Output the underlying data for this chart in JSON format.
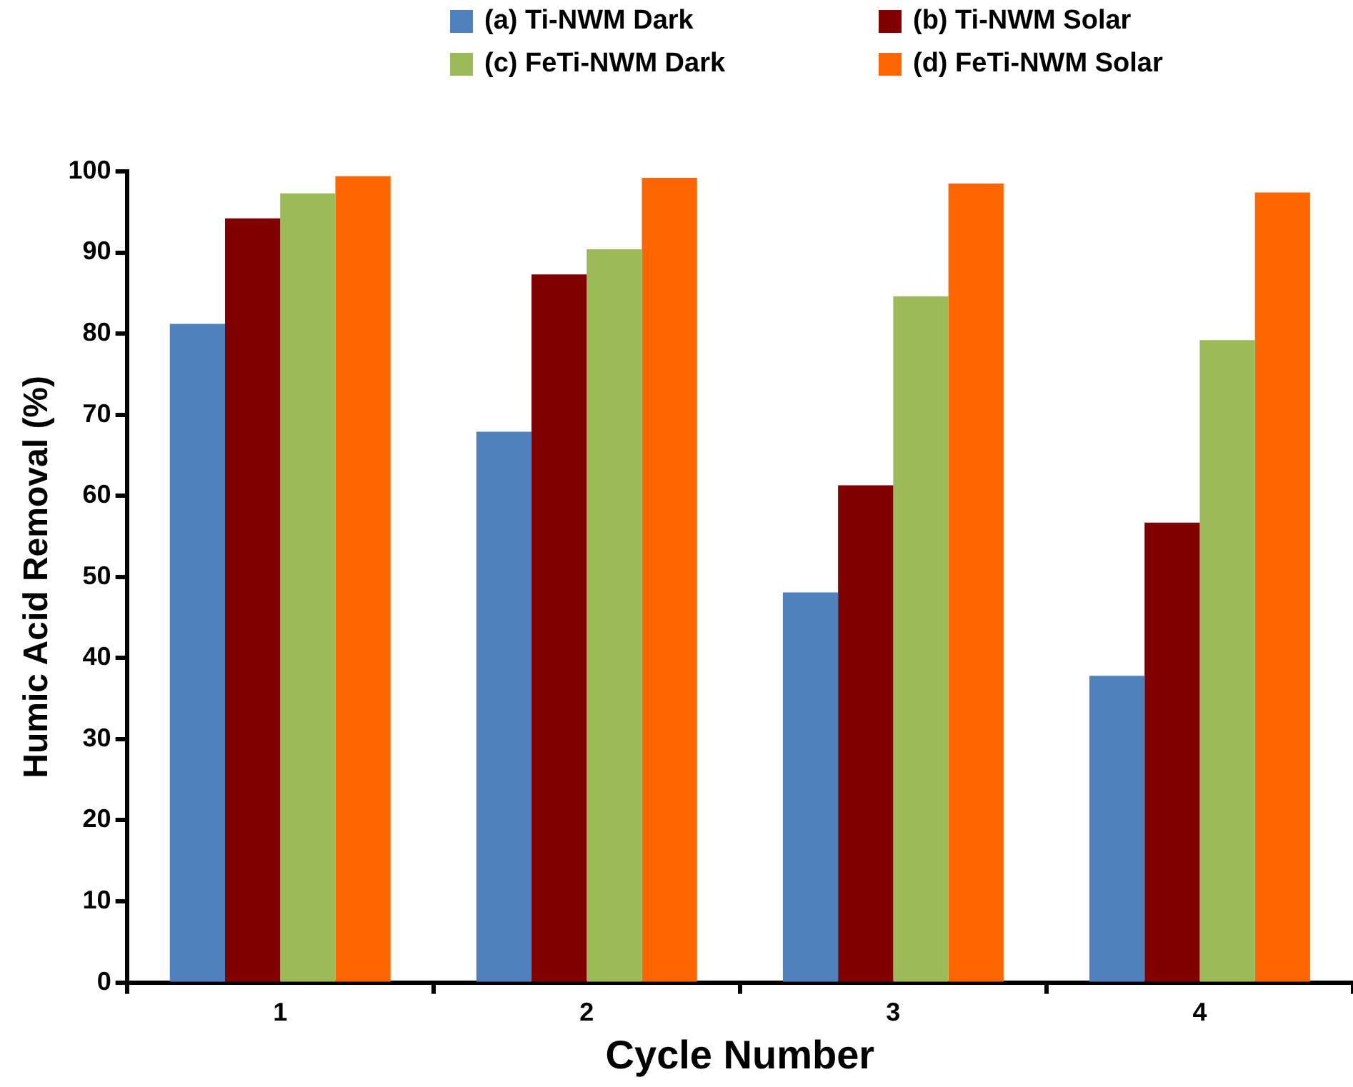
{
  "chart_data": {
    "type": "bar",
    "xlabel": "Cycle Number",
    "ylabel": "Humic Acid Removal (%)",
    "categories": [
      "1",
      "2",
      "3",
      "4"
    ],
    "series": [
      {
        "name": "(a) Ti-NWM Dark",
        "color": "#4f81bd",
        "values": [
          81.2,
          67.9,
          48.1,
          37.8
        ]
      },
      {
        "name": "(b) Ti-NWM Solar",
        "color": "#800000",
        "values": [
          94.2,
          87.3,
          61.3,
          56.7
        ]
      },
      {
        "name": "(c) FeTi-NWM Dark",
        "color": "#9bbb59",
        "values": [
          97.3,
          90.4,
          84.6,
          79.2
        ]
      },
      {
        "name": "(d) FeTi-NWM Solar",
        "color": "#ff6600",
        "values": [
          99.4,
          99.2,
          98.5,
          97.4
        ]
      }
    ],
    "ylim": [
      0,
      100
    ],
    "yticks": [
      0,
      10,
      20,
      30,
      40,
      50,
      60,
      70,
      80,
      90,
      100
    ],
    "grid": false,
    "legend": "top"
  }
}
